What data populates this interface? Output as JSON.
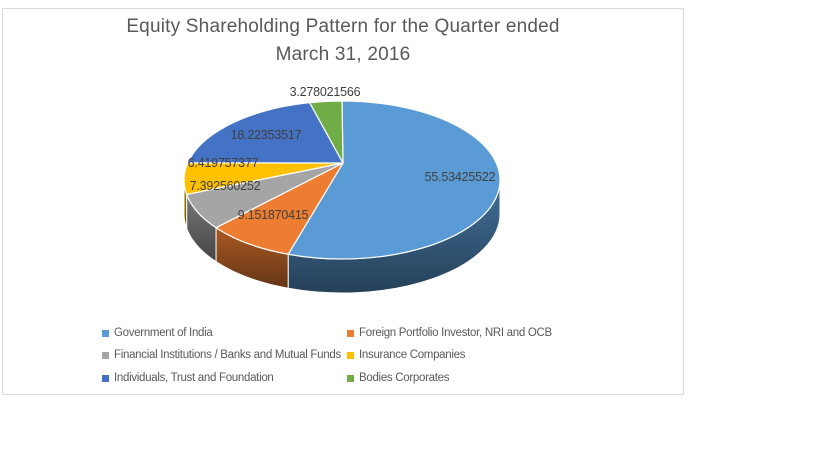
{
  "chart_data": {
    "type": "pie",
    "style": "3d",
    "title": "Equity Shareholding Pattern for the Quarter ended March 31, 2016",
    "title_lines": [
      "Equity Shareholding Pattern for the Quarter ended",
      "March 31, 2016"
    ],
    "legend_position": "bottom",
    "start_angle_deg": 0,
    "grid": false,
    "slices": [
      {
        "label": "Government of India",
        "value": 55.53425522,
        "color": "#5B9BD5"
      },
      {
        "label": "Foreign Portfolio Investor, NRI and OCB",
        "value": 9.151870415,
        "color": "#ED7D31"
      },
      {
        "label": "Financial Institutions / Banks and Mutual Funds",
        "value": 7.392560252,
        "color": "#A5A5A5"
      },
      {
        "label": "Insurance Companies",
        "value": 6.419757377,
        "color": "#FFC000"
      },
      {
        "label": "Individuals, Trust and Foundation",
        "value": 18.22353517,
        "color": "#4472C4"
      },
      {
        "label": "Bodies Corporates",
        "value": 3.278021566,
        "color": "#70AD47"
      }
    ],
    "title_color": "#595959",
    "label_color": "#404040",
    "legend_text_color": "#595959",
    "frame_border_color": "#D9D9D9",
    "slice_outline_color": "#FFFFFF"
  }
}
